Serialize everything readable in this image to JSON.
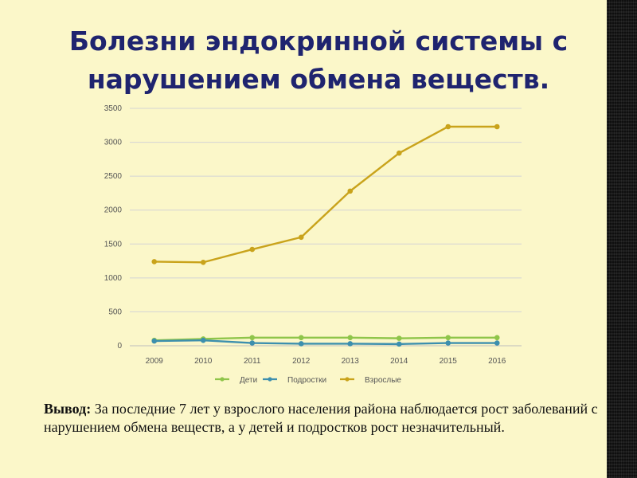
{
  "slide": {
    "title_line_1": "Болезни эндокринной системы с",
    "title_line_2": "нарушением обмена веществ.",
    "conclusion_label": "Вывод:",
    "conclusion_text": "За последние 7 лет у взрослого населения района наблюдается рост заболеваний с нарушением обмена веществ, а у детей и подростков рост незначительный."
  },
  "chart_data": {
    "type": "line",
    "title": "",
    "xlabel": "",
    "ylabel": "",
    "x": [
      "2009",
      "2010",
      "2011",
      "2012",
      "2013",
      "2014",
      "2015",
      "2016"
    ],
    "ylim": [
      0,
      3500
    ],
    "yticks": [
      0,
      500,
      1000,
      1500,
      2000,
      2500,
      3000,
      3500
    ],
    "grid": true,
    "legend_position": "bottom",
    "series": [
      {
        "name": "Дети",
        "color": "#8fc54a",
        "values": [
          80,
          100,
          120,
          120,
          120,
          110,
          120,
          120
        ]
      },
      {
        "name": "Подростки",
        "color": "#3d8fae",
        "values": [
          70,
          80,
          40,
          30,
          30,
          25,
          40,
          40
        ]
      },
      {
        "name": "Взрослые",
        "color": "#c9a31b",
        "values": [
          1240,
          1230,
          1420,
          1600,
          2280,
          2840,
          3230,
          3230
        ]
      }
    ]
  }
}
